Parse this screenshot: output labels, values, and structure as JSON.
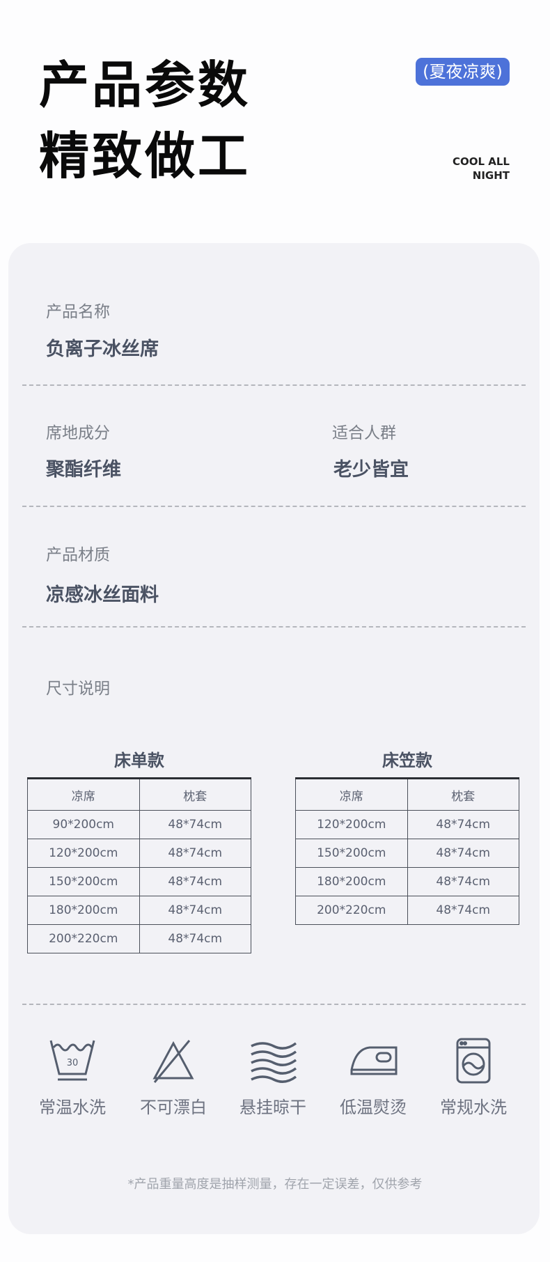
{
  "header": {
    "title_line1": "产品参数",
    "title_line2": "精致做工",
    "badge": "(夏夜凉爽)",
    "tagline_line1": "COOL ALL",
    "tagline_line2": "NIGHT",
    "badge_color": "#4d72d9"
  },
  "specs": {
    "name_label": "产品名称",
    "name_value": "负离子冰丝席",
    "composition_label": "席地成分",
    "composition_value": "聚酯纤维",
    "audience_label": "适合人群",
    "audience_value": "老少皆宜",
    "material_label": "产品材质",
    "material_value": "凉感冰丝面料",
    "size_label": "尺寸说明"
  },
  "tables": [
    {
      "title": "床单款",
      "headers": [
        "凉席",
        "枕套"
      ],
      "rows": [
        [
          "90*200cm",
          "48*74cm"
        ],
        [
          "120*200cm",
          "48*74cm"
        ],
        [
          "150*200cm",
          "48*74cm"
        ],
        [
          "180*200cm",
          "48*74cm"
        ],
        [
          "200*220cm",
          "48*74cm"
        ]
      ]
    },
    {
      "title": "床笠款",
      "headers": [
        "凉席",
        "枕套"
      ],
      "rows": [
        [
          "120*200cm",
          "48*74cm"
        ],
        [
          "150*200cm",
          "48*74cm"
        ],
        [
          "180*200cm",
          "48*74cm"
        ],
        [
          "200*220cm",
          "48*74cm"
        ]
      ]
    }
  ],
  "care": [
    {
      "icon": "wash-30-icon",
      "label": "常温水洗",
      "badge": "30"
    },
    {
      "icon": "no-bleach-icon",
      "label": "不可漂白"
    },
    {
      "icon": "hang-dry-icon",
      "label": "悬挂晾干"
    },
    {
      "icon": "low-iron-icon",
      "label": "低温熨烫"
    },
    {
      "icon": "washing-machine-icon",
      "label": "常规水洗"
    }
  ],
  "footnote": "*产品重量高度是抽样测量，存在一定误差，仅供参考"
}
